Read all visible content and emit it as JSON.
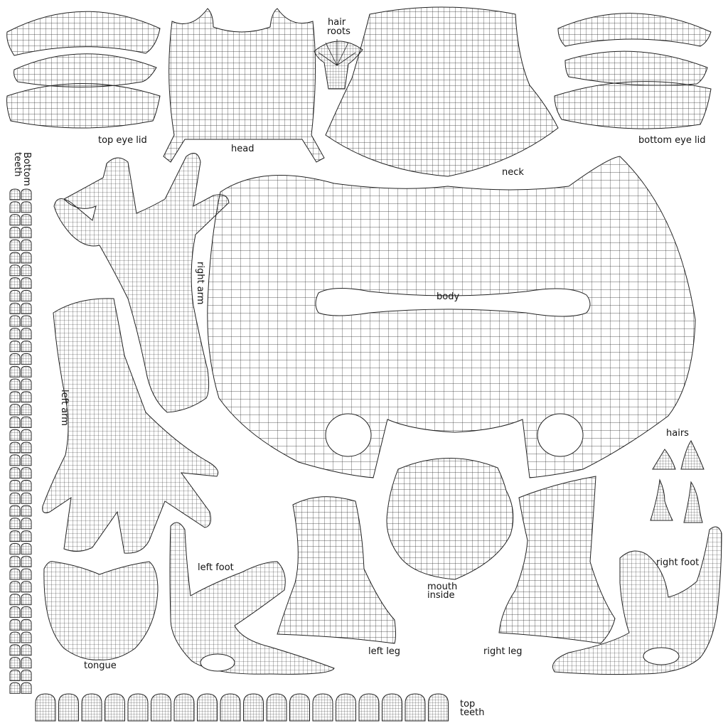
{
  "labels": {
    "top_eye_lid": "top eye lid",
    "head": "head",
    "hair_roots_1": "hair",
    "hair_roots_2": "roots",
    "neck": "neck",
    "bottom_eye_lid": "bottom eye lid",
    "bottom_teeth_1": "Bottom",
    "bottom_teeth_2": "teeth",
    "right_arm": "right arm",
    "body": "body",
    "left_arm": "left arm",
    "hairs": "hairs",
    "left_foot": "left foot",
    "right_foot": "right foot",
    "mouth_inside_1": "mouth",
    "mouth_inside_2": "inside",
    "tongue": "tongue",
    "left_leg": "left leg",
    "right_leg": "right leg",
    "top_teeth_1": "top",
    "top_teeth_2": "teeth"
  },
  "colors": {
    "wire": "#2a2a2a",
    "background": "#ffffff"
  }
}
